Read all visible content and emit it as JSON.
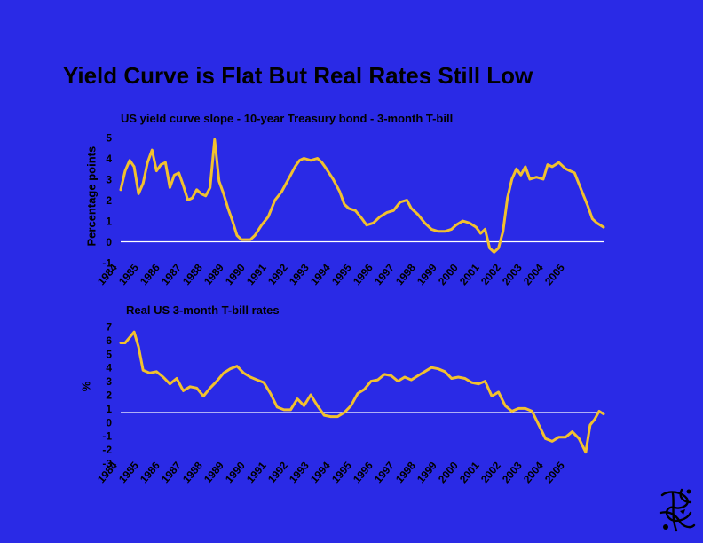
{
  "slide": {
    "title": "Yield Curve is Flat But Real Rates Still Low"
  },
  "colors": {
    "background": "#2a2ae6",
    "series": "#f2c12e",
    "baseline": "#ffffff",
    "text": "#000000"
  },
  "chart_data": [
    {
      "id": "top",
      "type": "line",
      "title": "US yield curve slope - 10-year Treasury bond - 3-month T-bill",
      "xlabel": "",
      "ylabel": "Percentage points",
      "ylim": [
        -1,
        5
      ],
      "yticks": [
        5,
        4,
        3,
        2,
        1,
        0,
        -1
      ],
      "xlim": [
        1984,
        2005.6
      ],
      "xtick_labels": [
        "1984",
        "1985",
        "1986",
        "1987",
        "1988",
        "1989",
        "1990",
        "1991",
        "1992",
        "1993",
        "1994",
        "1995",
        "1996",
        "1997",
        "1998",
        "1999",
        "2000",
        "2001",
        "2002",
        "2003",
        "2004",
        "2005"
      ],
      "baseline": 0,
      "series": [
        {
          "name": "10-year minus 3-month spread",
          "x": [
            1984.0,
            1984.2,
            1984.4,
            1984.6,
            1984.8,
            1985.0,
            1985.2,
            1985.4,
            1985.6,
            1985.8,
            1986.0,
            1986.2,
            1986.4,
            1986.6,
            1986.8,
            1987.0,
            1987.2,
            1987.4,
            1987.6,
            1987.8,
            1988.0,
            1988.2,
            1988.4,
            1988.6,
            1988.8,
            1989.0,
            1989.2,
            1989.4,
            1989.6,
            1989.8,
            1990.0,
            1990.3,
            1990.6,
            1990.9,
            1991.2,
            1991.5,
            1991.8,
            1992.0,
            1992.2,
            1992.5,
            1992.8,
            1993.0,
            1993.2,
            1993.5,
            1993.8,
            1994.0,
            1994.2,
            1994.5,
            1994.8,
            1995.0,
            1995.3,
            1995.6,
            1995.9,
            1996.2,
            1996.5,
            1996.8,
            1997.0,
            1997.3,
            1997.6,
            1997.9,
            1998.2,
            1998.5,
            1998.8,
            1999.0,
            1999.3,
            1999.6,
            1999.9,
            2000.1,
            2000.3,
            2000.5,
            2000.7,
            2000.9,
            2001.1,
            2001.3,
            2001.5,
            2001.7,
            2001.9,
            2002.1,
            2002.3,
            2002.6,
            2002.9,
            2003.1,
            2003.3,
            2003.6,
            2003.9,
            2004.1,
            2004.3,
            2004.6,
            2004.9,
            2005.1,
            2005.3,
            2005.6
          ],
          "y": [
            2.5,
            3.4,
            3.9,
            3.6,
            2.3,
            2.8,
            3.8,
            4.4,
            3.4,
            3.7,
            3.8,
            2.6,
            3.2,
            3.3,
            2.7,
            2.0,
            2.1,
            2.5,
            2.3,
            2.2,
            2.6,
            4.9,
            2.9,
            2.3,
            1.6,
            1.0,
            0.3,
            0.1,
            0.1,
            0.1,
            0.3,
            0.8,
            1.2,
            2.0,
            2.4,
            3.0,
            3.6,
            3.9,
            4.0,
            3.9,
            4.0,
            3.8,
            3.5,
            3.0,
            2.4,
            1.8,
            1.6,
            1.5,
            1.1,
            0.8,
            0.9,
            1.2,
            1.4,
            1.5,
            1.9,
            2.0,
            1.6,
            1.3,
            0.9,
            0.6,
            0.5,
            0.5,
            0.6,
            0.8,
            1.0,
            0.9,
            0.7,
            0.4,
            0.6,
            -0.3,
            -0.5,
            -0.3,
            0.5,
            2.1,
            3.0,
            3.5,
            3.2,
            3.6,
            3.0,
            3.1,
            3.0,
            3.7,
            3.6,
            3.8,
            3.5,
            3.4,
            3.3,
            2.5,
            1.7,
            1.1,
            0.9,
            0.7
          ]
        }
      ]
    },
    {
      "id": "bottom",
      "type": "line",
      "title": "Real US 3-month T-bill rates",
      "xlabel": "",
      "ylabel": "%",
      "ylim": [
        -3,
        7
      ],
      "yticks": [
        7,
        6,
        5,
        4,
        3,
        2,
        1,
        0,
        -1,
        -2,
        -3
      ],
      "xlim": [
        1984,
        2005.6
      ],
      "xtick_labels": [
        "1984",
        "1985",
        "1986",
        "1987",
        "1988",
        "1989",
        "1990",
        "1991",
        "1992",
        "1993",
        "1994",
        "1995",
        "1996",
        "1997",
        "1998",
        "1999",
        "2000",
        "2001",
        "2002",
        "2003",
        "2004",
        "2005"
      ],
      "baseline": 0.7,
      "series": [
        {
          "name": "Real 3-month T-bill rate",
          "x": [
            1984.0,
            1984.2,
            1984.4,
            1984.6,
            1984.8,
            1985.0,
            1985.3,
            1985.6,
            1985.9,
            1986.2,
            1986.5,
            1986.8,
            1987.1,
            1987.4,
            1987.7,
            1988.0,
            1988.3,
            1988.6,
            1988.9,
            1989.2,
            1989.5,
            1989.8,
            1990.1,
            1990.4,
            1990.7,
            1991.0,
            1991.3,
            1991.6,
            1991.9,
            1992.2,
            1992.5,
            1992.8,
            1993.1,
            1993.4,
            1993.7,
            1994.0,
            1994.3,
            1994.6,
            1994.9,
            1995.2,
            1995.5,
            1995.8,
            1996.1,
            1996.4,
            1996.7,
            1997.0,
            1997.3,
            1997.6,
            1997.9,
            1998.2,
            1998.5,
            1998.8,
            1999.1,
            1999.4,
            1999.7,
            2000.0,
            2000.3,
            2000.6,
            2000.9,
            2001.2,
            2001.5,
            2001.8,
            2002.1,
            2002.4,
            2002.7,
            2003.0,
            2003.3,
            2003.6,
            2003.9,
            2004.2,
            2004.5,
            2004.8,
            2005.0,
            2005.2,
            2005.4,
            2005.6
          ],
          "y": [
            5.8,
            5.8,
            6.2,
            6.6,
            5.5,
            3.8,
            3.6,
            3.7,
            3.3,
            2.8,
            3.2,
            2.3,
            2.6,
            2.5,
            1.9,
            2.5,
            3.0,
            3.6,
            3.9,
            4.1,
            3.6,
            3.3,
            3.1,
            2.9,
            2.1,
            1.1,
            0.9,
            0.9,
            1.7,
            1.2,
            2.0,
            1.2,
            0.5,
            0.4,
            0.4,
            0.7,
            1.2,
            2.1,
            2.4,
            3.0,
            3.1,
            3.5,
            3.4,
            3.0,
            3.3,
            3.1,
            3.4,
            3.7,
            4.0,
            3.9,
            3.7,
            3.2,
            3.3,
            3.2,
            2.9,
            2.8,
            3.0,
            1.9,
            2.2,
            1.2,
            0.8,
            1.0,
            1.0,
            0.8,
            -0.2,
            -1.2,
            -1.4,
            -1.1,
            -1.1,
            -0.7,
            -1.2,
            -2.2,
            -0.2,
            0.2,
            0.8,
            0.6
          ]
        }
      ]
    }
  ]
}
